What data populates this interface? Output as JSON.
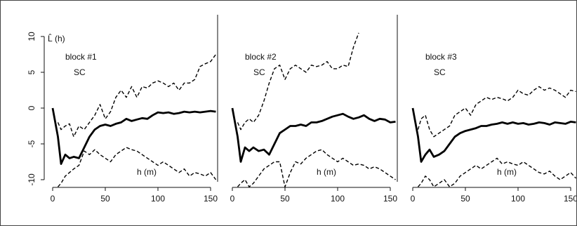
{
  "chart_data": {
    "type": "line",
    "ylabel": "L̂ (h)",
    "ylim": [
      -10,
      10
    ],
    "xlim": [
      0,
      150
    ],
    "x_ticks": [
      "0",
      "50",
      "100",
      "150"
    ],
    "y_ticks": [
      "-10",
      "-5",
      "0",
      "5",
      "10"
    ],
    "grid": false,
    "panels": [
      {
        "title": "block #1",
        "subtitle": "SC",
        "xlabel": "h (m)",
        "series": [
          {
            "role": "estimate",
            "x": [
              0,
              5,
              8,
              12,
              16,
              20,
              25,
              30,
              35,
              40,
              45,
              50,
              55,
              60,
              65,
              70,
              75,
              80,
              85,
              90,
              95,
              100,
              105,
              110,
              115,
              120,
              125,
              130,
              135,
              140,
              145,
              150,
              155
            ],
            "y": [
              0,
              -4,
              -7.8,
              -6.5,
              -7,
              -6.8,
              -7,
              -5.5,
              -4,
              -3,
              -2.5,
              -2.3,
              -2.5,
              -2.2,
              -2,
              -1.5,
              -1.8,
              -1.6,
              -1.4,
              -1.5,
              -1,
              -0.6,
              -0.7,
              -0.6,
              -0.8,
              -0.7,
              -0.5,
              -0.6,
              -0.5,
              -0.6,
              -0.5,
              -0.4,
              -0.5
            ]
          },
          {
            "role": "upper-envelope",
            "x": [
              5,
              8,
              12,
              16,
              20,
              25,
              30,
              35,
              40,
              45,
              50,
              55,
              60,
              65,
              70,
              75,
              80,
              85,
              90,
              95,
              100,
              105,
              110,
              115,
              120,
              125,
              130,
              135,
              140,
              145,
              150,
              155
            ],
            "y": [
              -2,
              -3,
              -2.5,
              -2.2,
              -4,
              -2.5,
              -3,
              -2,
              -1,
              0.5,
              -1.5,
              -0.5,
              1.5,
              2.5,
              1.5,
              3,
              1.5,
              3,
              2.8,
              3.5,
              3.8,
              3.5,
              3,
              3.5,
              2.5,
              3.5,
              3.5,
              4,
              5.8,
              6.2,
              6.5,
              7.5
            ]
          },
          {
            "role": "lower-envelope",
            "x": [
              5,
              8,
              12,
              16,
              20,
              25,
              30,
              35,
              40,
              45,
              50,
              55,
              60,
              65,
              70,
              75,
              80,
              85,
              90,
              95,
              100,
              105,
              110,
              115,
              120,
              125,
              130,
              135,
              140,
              145,
              150,
              155
            ],
            "y": [
              -11,
              -10.5,
              -9.5,
              -9,
              -8.5,
              -8,
              -6,
              -6.5,
              -5.8,
              -6.5,
              -7,
              -7.5,
              -6.5,
              -6,
              -5.5,
              -5.8,
              -6,
              -6.5,
              -7,
              -7.5,
              -8,
              -7.5,
              -8,
              -8.5,
              -9,
              -8.5,
              -9.5,
              -9,
              -9.2,
              -9.5,
              -9,
              -10
            ]
          }
        ]
      },
      {
        "title": "block #2",
        "subtitle": "SC",
        "xlabel": "h (m)",
        "series": [
          {
            "role": "estimate",
            "x": [
              0,
              5,
              8,
              12,
              16,
              20,
              25,
              30,
              35,
              40,
              45,
              50,
              55,
              60,
              65,
              70,
              75,
              80,
              85,
              90,
              95,
              100,
              105,
              110,
              115,
              120,
              125,
              130,
              135,
              140,
              145,
              150,
              155
            ],
            "y": [
              0,
              -4,
              -7.5,
              -5.5,
              -6,
              -5.5,
              -6,
              -5.8,
              -6.5,
              -5,
              -3.5,
              -3,
              -2.5,
              -2.5,
              -2.3,
              -2.5,
              -2,
              -2,
              -1.8,
              -1.5,
              -1.2,
              -1,
              -0.8,
              -1.2,
              -1.5,
              -1.3,
              -1,
              -1.5,
              -1.8,
              -1.5,
              -1.6,
              -2,
              -1.9
            ]
          },
          {
            "role": "upper-envelope",
            "x": [
              5,
              8,
              12,
              16,
              20,
              25,
              30,
              35,
              40,
              45,
              50,
              55,
              60,
              65,
              70,
              75,
              80,
              85,
              90,
              95,
              100,
              105,
              110,
              115,
              120
            ],
            "y": [
              -2,
              -3,
              -2,
              -1.5,
              -2,
              -1,
              1,
              3.5,
              5.5,
              6,
              4,
              5.5,
              6,
              5.5,
              5,
              6,
              5.8,
              6,
              6.5,
              5.5,
              5.5,
              6,
              5.8,
              8.5,
              10.5
            ]
          },
          {
            "role": "lower-envelope",
            "x": [
              5,
              8,
              12,
              16,
              20,
              25,
              30,
              35,
              40,
              45,
              50,
              55,
              60,
              65,
              70,
              75,
              80,
              85,
              90,
              95,
              100,
              105,
              110,
              115,
              120,
              125,
              130,
              135,
              140,
              145,
              150,
              155
            ],
            "y": [
              -11,
              -10.5,
              -10,
              -11,
              -10.5,
              -9.5,
              -8.5,
              -8,
              -7.5,
              -7.5,
              -11,
              -9,
              -7.5,
              -7.8,
              -7,
              -6.5,
              -6,
              -5.8,
              -6.5,
              -7,
              -7.5,
              -7,
              -7.5,
              -8,
              -7.8,
              -8,
              -8.5,
              -8.2,
              -8.5,
              -9,
              -9.5,
              -10
            ]
          }
        ]
      },
      {
        "title": "block #3",
        "subtitle": "SC",
        "xlabel": "h (m)",
        "series": [
          {
            "role": "estimate",
            "x": [
              0,
              5,
              8,
              12,
              16,
              20,
              25,
              30,
              35,
              40,
              45,
              50,
              55,
              60,
              65,
              70,
              75,
              80,
              85,
              90,
              95,
              100,
              105,
              110,
              115,
              120,
              125,
              130,
              135,
              140,
              145,
              150,
              155
            ],
            "y": [
              0,
              -4,
              -7.5,
              -6.5,
              -5.8,
              -6.8,
              -6.5,
              -6,
              -5,
              -4,
              -3.5,
              -3.2,
              -3,
              -2.8,
              -2.5,
              -2.5,
              -2.3,
              -2.2,
              -2,
              -2.2,
              -2,
              -2.2,
              -2.1,
              -2.3,
              -2.2,
              -2,
              -2.1,
              -2.3,
              -2,
              -2.1,
              -2.2,
              -1.9,
              -2
            ]
          },
          {
            "role": "upper-envelope",
            "x": [
              5,
              8,
              12,
              16,
              20,
              25,
              30,
              35,
              40,
              45,
              50,
              55,
              60,
              65,
              70,
              75,
              80,
              85,
              90,
              95,
              100,
              105,
              110,
              115,
              120,
              125,
              130,
              135,
              140,
              145,
              150,
              155
            ],
            "y": [
              -3,
              -1.5,
              -1,
              -3,
              -4,
              -3.5,
              -3,
              -2.5,
              -1,
              -0.5,
              0,
              -1,
              0.5,
              1,
              1.5,
              1.2,
              1.5,
              1.3,
              1,
              1.5,
              2.5,
              2,
              1.8,
              2.5,
              3,
              2.5,
              2.8,
              2.5,
              2,
              1.5,
              2.5,
              2.3
            ]
          },
          {
            "role": "lower-envelope",
            "x": [
              5,
              8,
              12,
              16,
              20,
              25,
              30,
              35,
              40,
              45,
              50,
              55,
              60,
              65,
              70,
              75,
              80,
              85,
              90,
              95,
              100,
              105,
              110,
              115,
              120,
              125,
              130,
              135,
              140,
              145,
              150,
              155
            ],
            "y": [
              -11,
              -10.5,
              -9.5,
              -10,
              -11,
              -10.5,
              -10,
              -11,
              -10.5,
              -9.5,
              -9,
              -8.5,
              -8,
              -8.5,
              -8,
              -7.5,
              -7,
              -7.8,
              -7.5,
              -7.8,
              -8,
              -7.5,
              -8,
              -8.5,
              -9,
              -9.2,
              -8.8,
              -9.5,
              -10,
              -9.5,
              -9,
              -9.8
            ]
          }
        ]
      }
    ]
  }
}
